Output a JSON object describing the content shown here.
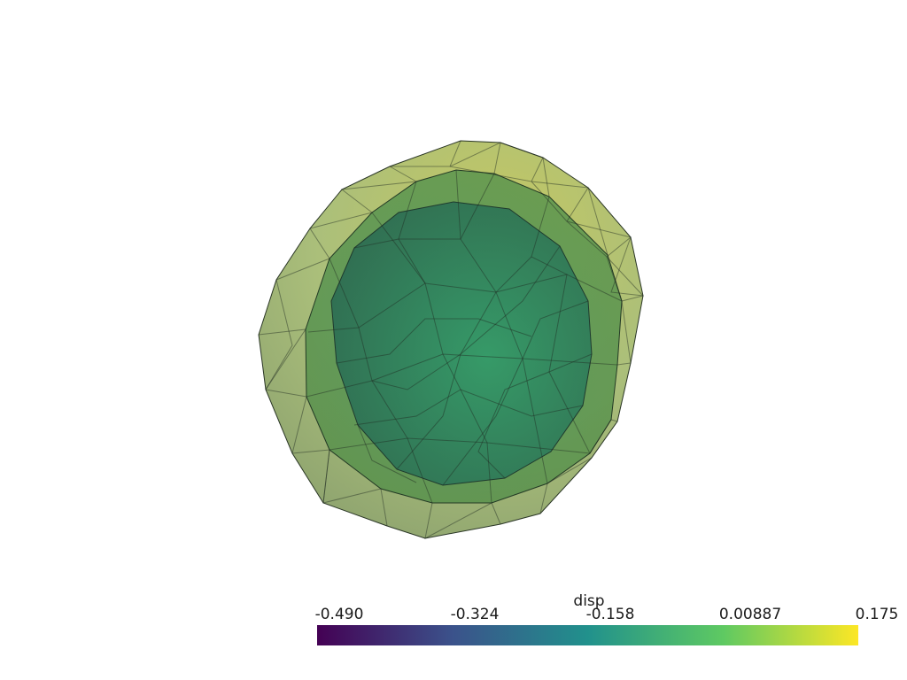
{
  "scene": {
    "colors": {
      "outer_low": "#6f8a4a",
      "outer_mid": "#93ad55",
      "outer_high": "#bcbf45",
      "middle": "#4f8a3f",
      "inner": "#2a7a5e",
      "edge": "#1e2b22"
    }
  },
  "scalar_bar": {
    "title": "disp",
    "range": [
      -0.49,
      0.175
    ],
    "tick_labels": [
      "-0.490",
      "-0.324",
      "-0.158",
      "0.00887",
      "0.175"
    ],
    "colormap": "viridis",
    "stops": [
      "#440154",
      "#3b528b",
      "#21918c",
      "#5ec962",
      "#fde725"
    ]
  }
}
